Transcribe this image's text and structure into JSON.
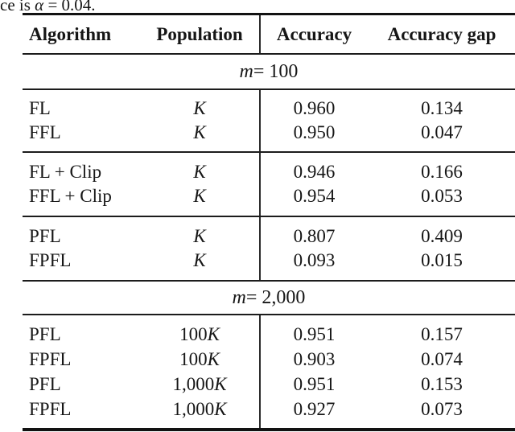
{
  "caption_fragment": {
    "pre": "ce is ",
    "alpha": "α",
    "post": " = 0.04."
  },
  "table": {
    "headers": {
      "algorithm": "Algorithm",
      "population": "Population",
      "accuracy": "Accuracy",
      "accuracy_gap": "Accuracy gap"
    },
    "sections": [
      {
        "title": {
          "var": "m",
          "rest": " = 100"
        },
        "groups": [
          {
            "rows": [
              {
                "algorithm": "FL",
                "pop_num": "",
                "pop_var": "K",
                "accuracy": "0.960",
                "gap": "0.134"
              },
              {
                "algorithm": "FFL",
                "pop_num": "",
                "pop_var": "K",
                "accuracy": "0.950",
                "gap": "0.047"
              }
            ]
          },
          {
            "rows": [
              {
                "algorithm": "FL + Clip",
                "pop_num": "",
                "pop_var": "K",
                "accuracy": "0.946",
                "gap": "0.166"
              },
              {
                "algorithm": "FFL + Clip",
                "pop_num": "",
                "pop_var": "K",
                "accuracy": "0.954",
                "gap": "0.053"
              }
            ]
          },
          {
            "rows": [
              {
                "algorithm": "PFL",
                "pop_num": "",
                "pop_var": "K",
                "accuracy": "0.807",
                "gap": "0.409"
              },
              {
                "algorithm": "FPFL",
                "pop_num": "",
                "pop_var": "K",
                "accuracy": "0.093",
                "gap": "0.015"
              }
            ]
          }
        ]
      },
      {
        "title": {
          "var": "m",
          "rest": " = 2,000"
        },
        "groups": [
          {
            "rows": [
              {
                "algorithm": "PFL",
                "pop_num": "100",
                "pop_var": "K",
                "accuracy": "0.951",
                "gap": "0.157"
              },
              {
                "algorithm": "FPFL",
                "pop_num": "100",
                "pop_var": "K",
                "accuracy": "0.903",
                "gap": "0.074"
              },
              {
                "algorithm": "PFL",
                "pop_num": "1,000",
                "pop_var": "K",
                "accuracy": "0.951",
                "gap": "0.153"
              },
              {
                "algorithm": "FPFL",
                "pop_num": "1,000",
                "pop_var": "K",
                "accuracy": "0.927",
                "gap": "0.073"
              }
            ]
          }
        ]
      }
    ]
  }
}
